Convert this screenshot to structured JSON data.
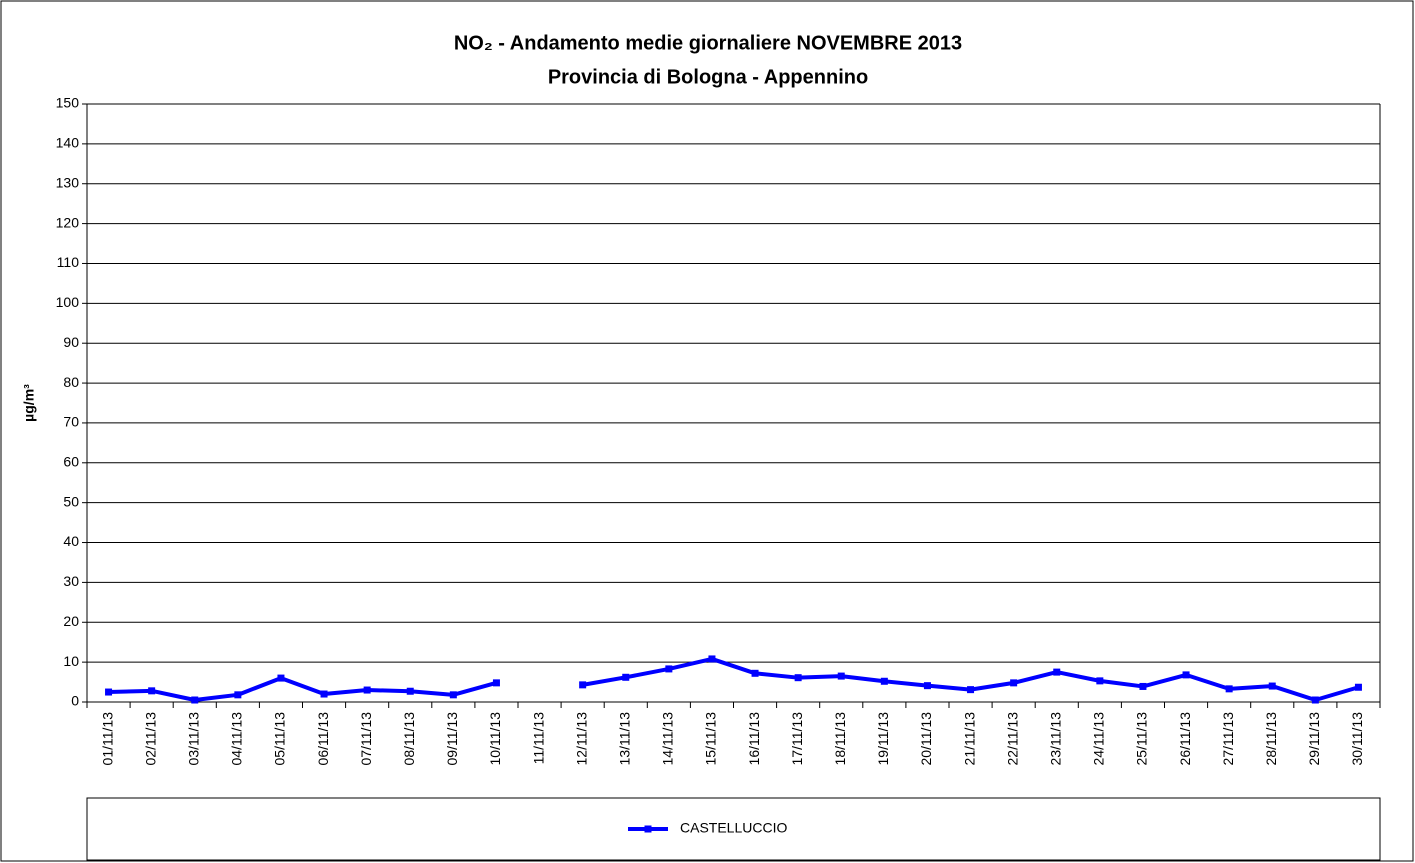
{
  "chart_data": {
    "type": "line",
    "title": "NO₂ - Andamento medie giornaliere NOVEMBRE 2013",
    "subtitle": "Provincia di Bologna - Appennino",
    "y_label": "µg/m³",
    "categories": [
      "01/11/13",
      "02/11/13",
      "03/11/13",
      "04/11/13",
      "05/11/13",
      "06/11/13",
      "07/11/13",
      "08/11/13",
      "09/11/13",
      "10/11/13",
      "11/11/13",
      "12/11/13",
      "13/11/13",
      "14/11/13",
      "15/11/13",
      "16/11/13",
      "17/11/13",
      "18/11/13",
      "19/11/13",
      "20/11/13",
      "21/11/13",
      "22/11/13",
      "23/11/13",
      "24/11/13",
      "25/11/13",
      "26/11/13",
      "27/11/13",
      "28/11/13",
      "29/11/13",
      "30/11/13"
    ],
    "series": [
      {
        "name": "CASTELLUCCIO",
        "color": "#0000ff",
        "values": [
          2.5,
          2.8,
          0.5,
          1.8,
          6,
          2,
          3,
          2.7,
          1.8,
          4.8,
          null,
          4.3,
          6.2,
          8.3,
          10.8,
          7.2,
          6.1,
          6.5,
          5.2,
          4.1,
          3.1,
          4.8,
          7.5,
          5.3,
          3.9,
          6.8,
          3.3,
          4,
          0.5,
          3.7
        ]
      }
    ],
    "ylim": [
      0,
      150
    ],
    "yticks": [
      0,
      10,
      20,
      30,
      40,
      50,
      60,
      70,
      80,
      90,
      100,
      110,
      120,
      130,
      140,
      150
    ],
    "grid": true,
    "legend": "bottom"
  }
}
